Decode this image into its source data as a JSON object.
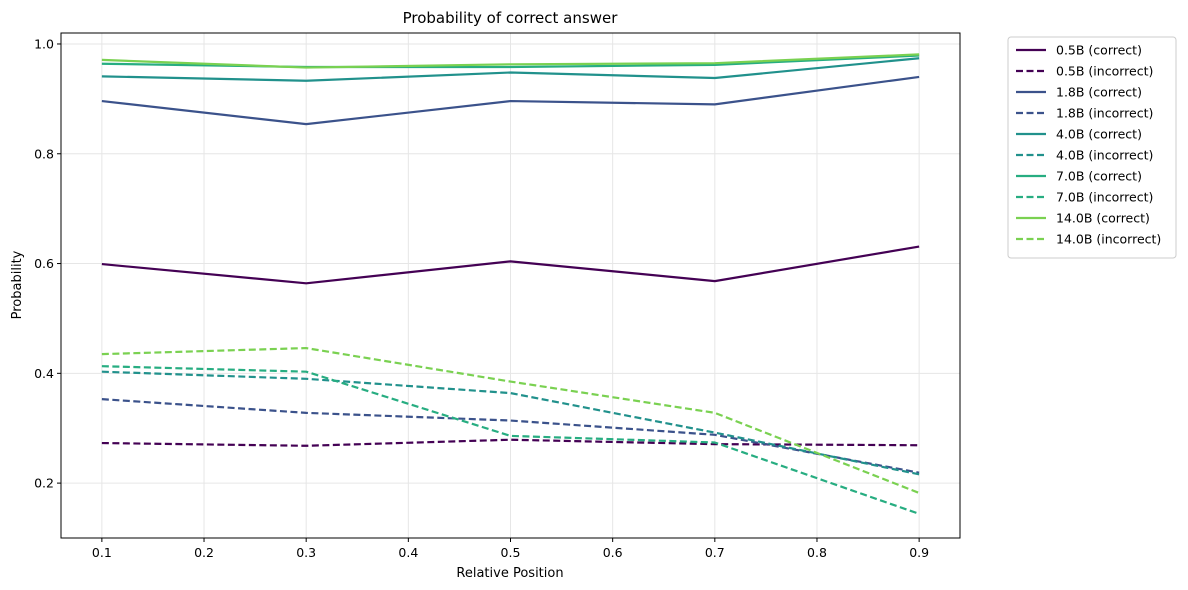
{
  "chart_data": {
    "type": "line",
    "title": "Probability of correct answer",
    "xlabel": "Relative Position",
    "ylabel": "Probability",
    "x": [
      0.1,
      0.3,
      0.5,
      0.7,
      0.9
    ],
    "xlim": [
      0.06,
      0.94
    ],
    "ylim": [
      0.1,
      1.02
    ],
    "xticks": [
      "0.1",
      "0.2",
      "0.3",
      "0.4",
      "0.5",
      "0.6",
      "0.7",
      "0.8",
      "0.9"
    ],
    "yticks": [
      "0.2",
      "0.4",
      "0.6",
      "0.8",
      "1.0"
    ],
    "grid": true,
    "legend_position": "outside-top-right",
    "series": [
      {
        "name": "0.5B (correct)",
        "color": "#440154",
        "dash": false,
        "values": [
          0.599,
          0.564,
          0.604,
          0.568,
          0.631
        ]
      },
      {
        "name": "0.5B (incorrect)",
        "color": "#440154",
        "dash": true,
        "values": [
          0.273,
          0.268,
          0.279,
          0.271,
          0.269
        ]
      },
      {
        "name": "1.8B (correct)",
        "color": "#3b528b",
        "dash": false,
        "values": [
          0.896,
          0.854,
          0.896,
          0.89,
          0.94
        ]
      },
      {
        "name": "1.8B (incorrect)",
        "color": "#3b528b",
        "dash": true,
        "values": [
          0.353,
          0.328,
          0.314,
          0.288,
          0.219
        ]
      },
      {
        "name": "4.0B (correct)",
        "color": "#21918c",
        "dash": false,
        "values": [
          0.941,
          0.933,
          0.948,
          0.938,
          0.974
        ]
      },
      {
        "name": "4.0B (incorrect)",
        "color": "#21918c",
        "dash": true,
        "values": [
          0.403,
          0.39,
          0.364,
          0.292,
          0.216
        ]
      },
      {
        "name": "7.0B (correct)",
        "color": "#27ad81",
        "dash": false,
        "values": [
          0.964,
          0.958,
          0.958,
          0.962,
          0.979
        ]
      },
      {
        "name": "7.0B (incorrect)",
        "color": "#27ad81",
        "dash": true,
        "values": [
          0.413,
          0.403,
          0.286,
          0.274,
          0.144
        ]
      },
      {
        "name": "14.0B (correct)",
        "color": "#7ad151",
        "dash": false,
        "values": [
          0.971,
          0.957,
          0.963,
          0.965,
          0.981
        ]
      },
      {
        "name": "14.0B (incorrect)",
        "color": "#7ad151",
        "dash": true,
        "values": [
          0.435,
          0.446,
          0.385,
          0.328,
          0.182
        ]
      }
    ]
  }
}
